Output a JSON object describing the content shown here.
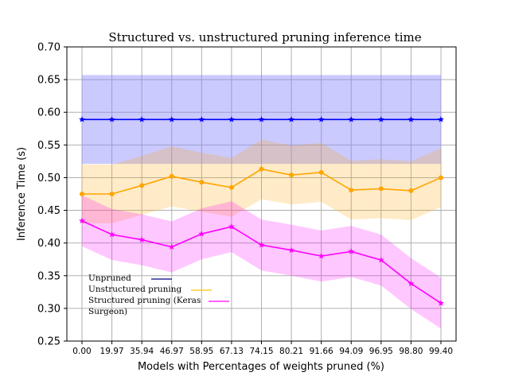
{
  "chart_data": {
    "type": "line",
    "title": "Structured vs. unstructured pruning inference time",
    "xlabel": "Models with Percentages of weights pruned (%)",
    "ylabel": "Inference Time (s)",
    "ylim": [
      0.25,
      0.7
    ],
    "yticks": [
      "0.25",
      "0.30",
      "0.35",
      "0.40",
      "0.45",
      "0.50",
      "0.55",
      "0.60",
      "0.65",
      "0.70"
    ],
    "categories": [
      "0.00",
      "19.97",
      "35.94",
      "46.97",
      "58.95",
      "67.13",
      "74.15",
      "80.21",
      "91.66",
      "94.09",
      "96.95",
      "98.80",
      "99.40"
    ],
    "grid": true,
    "legend_position": "lower-left",
    "series": [
      {
        "name": "Unpruned",
        "color": "#0000ff",
        "marker": "star",
        "values": [
          0.589,
          0.589,
          0.589,
          0.589,
          0.589,
          0.589,
          0.589,
          0.589,
          0.589,
          0.589,
          0.589,
          0.589,
          0.589
        ],
        "band_low": [
          0.521,
          0.521,
          0.521,
          0.521,
          0.521,
          0.521,
          0.521,
          0.521,
          0.521,
          0.521,
          0.521,
          0.521,
          0.521
        ],
        "band_high": [
          0.657,
          0.657,
          0.657,
          0.657,
          0.657,
          0.657,
          0.657,
          0.657,
          0.657,
          0.657,
          0.657,
          0.657,
          0.657
        ],
        "band_color": "#8080ff"
      },
      {
        "name": "Unstructured pruning",
        "color": "#ffa500",
        "marker": "circle",
        "values": [
          0.475,
          0.475,
          0.488,
          0.502,
          0.493,
          0.485,
          0.513,
          0.504,
          0.508,
          0.481,
          0.483,
          0.48,
          0.5
        ],
        "band_low": [
          0.43,
          0.43,
          0.443,
          0.456,
          0.448,
          0.44,
          0.467,
          0.459,
          0.463,
          0.436,
          0.438,
          0.435,
          0.455
        ],
        "band_high": [
          0.52,
          0.52,
          0.533,
          0.548,
          0.538,
          0.53,
          0.558,
          0.549,
          0.553,
          0.526,
          0.528,
          0.525,
          0.545
        ],
        "band_color": "#ffa500"
      },
      {
        "name": "Structured pruning (Keras Surgeon)",
        "color": "#ff00ff",
        "marker": "star",
        "values": [
          0.434,
          0.413,
          0.405,
          0.394,
          0.414,
          0.425,
          0.397,
          0.389,
          0.38,
          0.387,
          0.374,
          0.338,
          0.308
        ],
        "band_low": [
          0.395,
          0.374,
          0.366,
          0.355,
          0.375,
          0.386,
          0.358,
          0.35,
          0.341,
          0.348,
          0.335,
          0.299,
          0.269
        ],
        "band_high": [
          0.473,
          0.452,
          0.444,
          0.433,
          0.453,
          0.464,
          0.436,
          0.428,
          0.419,
          0.426,
          0.413,
          0.377,
          0.347
        ],
        "band_color": "#ff00ff"
      }
    ],
    "legend_entries": [
      {
        "lines": [
          "Unpruned"
        ],
        "color": "#000080"
      },
      {
        "lines": [
          "Unstructured pruning"
        ],
        "color": "#ffc000"
      },
      {
        "lines": [
          "Structured pruning (Keras",
          "Surgeon)"
        ],
        "color": "#ff00ff"
      }
    ]
  }
}
